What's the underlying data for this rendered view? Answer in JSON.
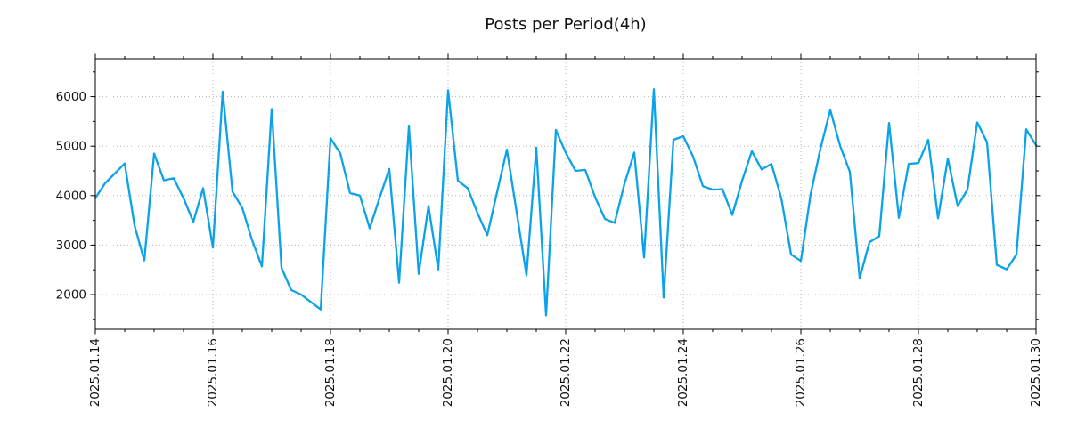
{
  "figure": {
    "title": "Posts per Period(4h)",
    "background": "#ffffff"
  },
  "chart_data": {
    "type": "line",
    "title": "Posts per Period(4h)",
    "x_interval_hours": 4,
    "x_start_label": "2025.01.14",
    "x_end_label": "2025.01.30",
    "x_tick_labels": [
      "2025.01.14",
      "2025.01.16",
      "2025.01.18",
      "2025.01.20",
      "2025.01.22",
      "2025.01.24",
      "2025.01.26",
      "2025.01.28",
      "2025.01.30"
    ],
    "x_tick_interval_days": 2,
    "x_minor_tick_hours": 12,
    "y_ticks": [
      2000,
      3000,
      4000,
      5000,
      6000
    ],
    "y_minor_tick_step": 500,
    "ylim": [
      1299,
      6766
    ],
    "grid": true,
    "grid_style": "dotted",
    "legend": false,
    "line_color": "#0aa2e8",
    "grid_color": "#b3b3b3",
    "axis_color": "#000000",
    "text_color": "#111111",
    "values": [
      3950,
      4250,
      4450,
      4650,
      3400,
      2690,
      4850,
      4310,
      4350,
      3950,
      3470,
      4150,
      2950,
      6100,
      4080,
      3750,
      3100,
      2570,
      5750,
      2540,
      2090,
      2000,
      1850,
      1700,
      5160,
      4850,
      4050,
      4000,
      3340,
      3950,
      4540,
      2240,
      5400,
      2420,
      3790,
      2510,
      6130,
      4300,
      4150,
      3650,
      3200,
      4070,
      4930,
      3660,
      2390,
      4970,
      1580,
      5330,
      4870,
      4500,
      4520,
      3970,
      3530,
      3450,
      4240,
      4870,
      2750,
      6150,
      1940,
      5130,
      5200,
      4790,
      4190,
      4120,
      4130,
      3610,
      4300,
      4900,
      4530,
      4640,
      3950,
      2810,
      2680,
      4030,
      4950,
      5730,
      5010,
      4480,
      2330,
      3060,
      3180,
      5470,
      3550,
      4640,
      4660,
      5130,
      3540,
      4750,
      3790,
      4120,
      5480,
      5080,
      2600,
      2510,
      2810,
      5340,
      5020
    ]
  }
}
